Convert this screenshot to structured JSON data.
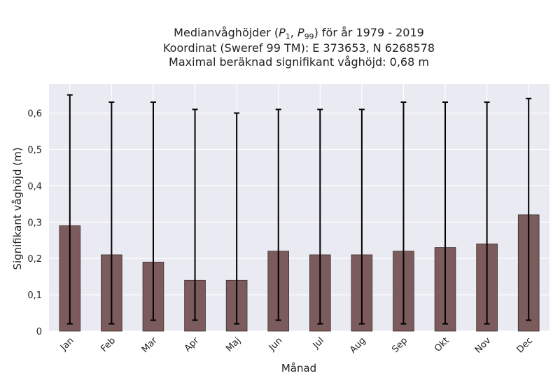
{
  "chart_data": {
    "type": "bar",
    "title_lines": [
      "Medianvåghöjder (P1, P99) för år 1979 - 2019",
      "Koordinat (Sweref 99 TM): E 373653, N 6268578",
      "Maximal beräknad signifikant våghöjd: 0,68 m"
    ],
    "xlabel": "Månad",
    "ylabel": "Signifikant våghöjd (m)",
    "categories": [
      "Jan",
      "Feb",
      "Mar",
      "Apr",
      "Maj",
      "Jun",
      "Jul",
      "Aug",
      "Sep",
      "Okt",
      "Nov",
      "Dec"
    ],
    "series": [
      {
        "values": [
          0.29,
          0.21,
          0.19,
          0.14,
          0.14,
          0.22,
          0.21,
          0.21,
          0.22,
          0.23,
          0.24,
          0.32
        ],
        "p1": [
          0.02,
          0.02,
          0.03,
          0.03,
          0.02,
          0.03,
          0.02,
          0.02,
          0.02,
          0.02,
          0.02,
          0.03
        ],
        "p99": [
          0.65,
          0.63,
          0.63,
          0.61,
          0.6,
          0.61,
          0.61,
          0.61,
          0.63,
          0.63,
          0.63,
          0.64
        ]
      }
    ],
    "ylim": [
      0,
      0.68
    ],
    "yticks": [
      0,
      0.1,
      0.2,
      0.3,
      0.4,
      0.5,
      0.6
    ],
    "ytick_labels": [
      "0",
      "0,1",
      "0,2",
      "0,3",
      "0,4",
      "0,5",
      "0,6"
    ],
    "grid": true,
    "legend": "none"
  },
  "colors": {
    "bar_fill": "#7b5b5b",
    "bar_edge": "#3d2c2c",
    "errorbar": "#000000",
    "plot_background": "#eaeaf2",
    "grid": "#ffffff",
    "text": "#222222"
  }
}
